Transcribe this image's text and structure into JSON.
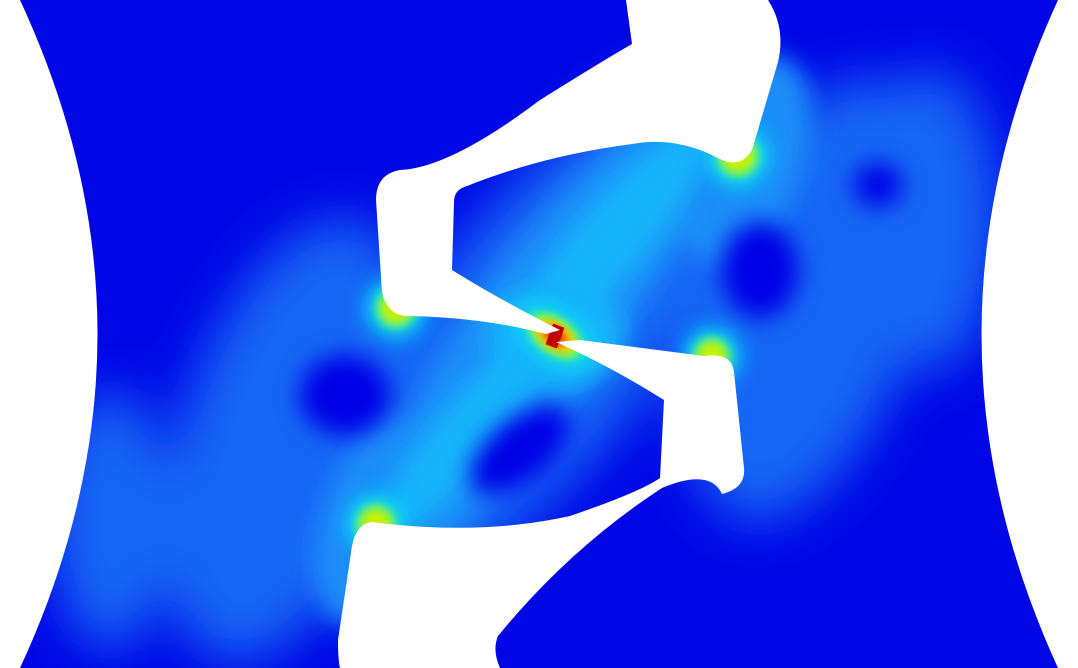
{
  "view": {
    "background_color": "#ffffff",
    "colormap": "jet",
    "colors": {
      "base": "#0006e6",
      "level_1": "#0a3cf0",
      "level_2": "#1466f5",
      "level_3": "#1c8cf8",
      "level_4": "#12b4fa",
      "level_5": "#00e6f0",
      "level_6": "#38f2a0",
      "level_7": "#c8f000",
      "level_8": "#ffd000",
      "level_9": "#ff2a00",
      "level_10": "#c00000"
    },
    "hotspots": [
      {
        "name": "center-crack-tip",
        "level": 1.0
      },
      {
        "name": "upper-right-notch-tip",
        "level": 0.55
      },
      {
        "name": "left-notch-tip",
        "level": 0.5
      },
      {
        "name": "right-notch-tip",
        "level": 0.5
      },
      {
        "name": "lower-left-notch-tip",
        "level": 0.55
      }
    ]
  }
}
